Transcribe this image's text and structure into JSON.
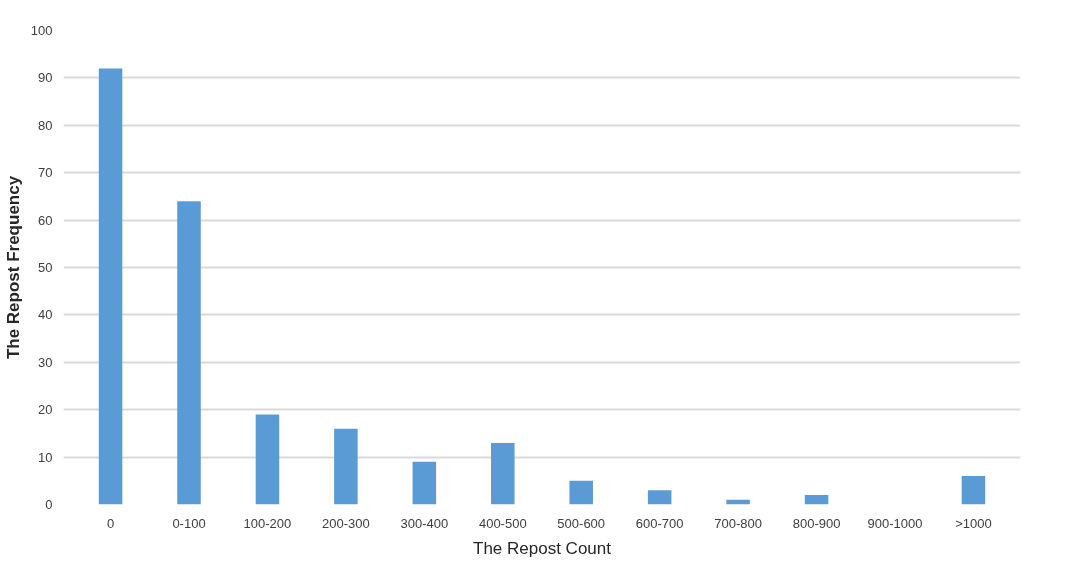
{
  "chart_data": {
    "type": "bar",
    "xlabel": "The Repost Count",
    "ylabel": "The Repost Frequency",
    "categories": [
      "0",
      "0-100",
      "100-200",
      "200-300",
      "300-400",
      "400-500",
      "500-600",
      "600-700",
      "700-800",
      "800-900",
      "900-1000",
      ">1000"
    ],
    "values": [
      92,
      64,
      19,
      16,
      9,
      13,
      5,
      3,
      1,
      2,
      0,
      6
    ],
    "color": "#5b9bd5",
    "ylim": [
      0,
      100
    ],
    "yticks": [
      0,
      10,
      20,
      30,
      40,
      50,
      60,
      70,
      80,
      90,
      100
    ],
    "grid": "y"
  }
}
